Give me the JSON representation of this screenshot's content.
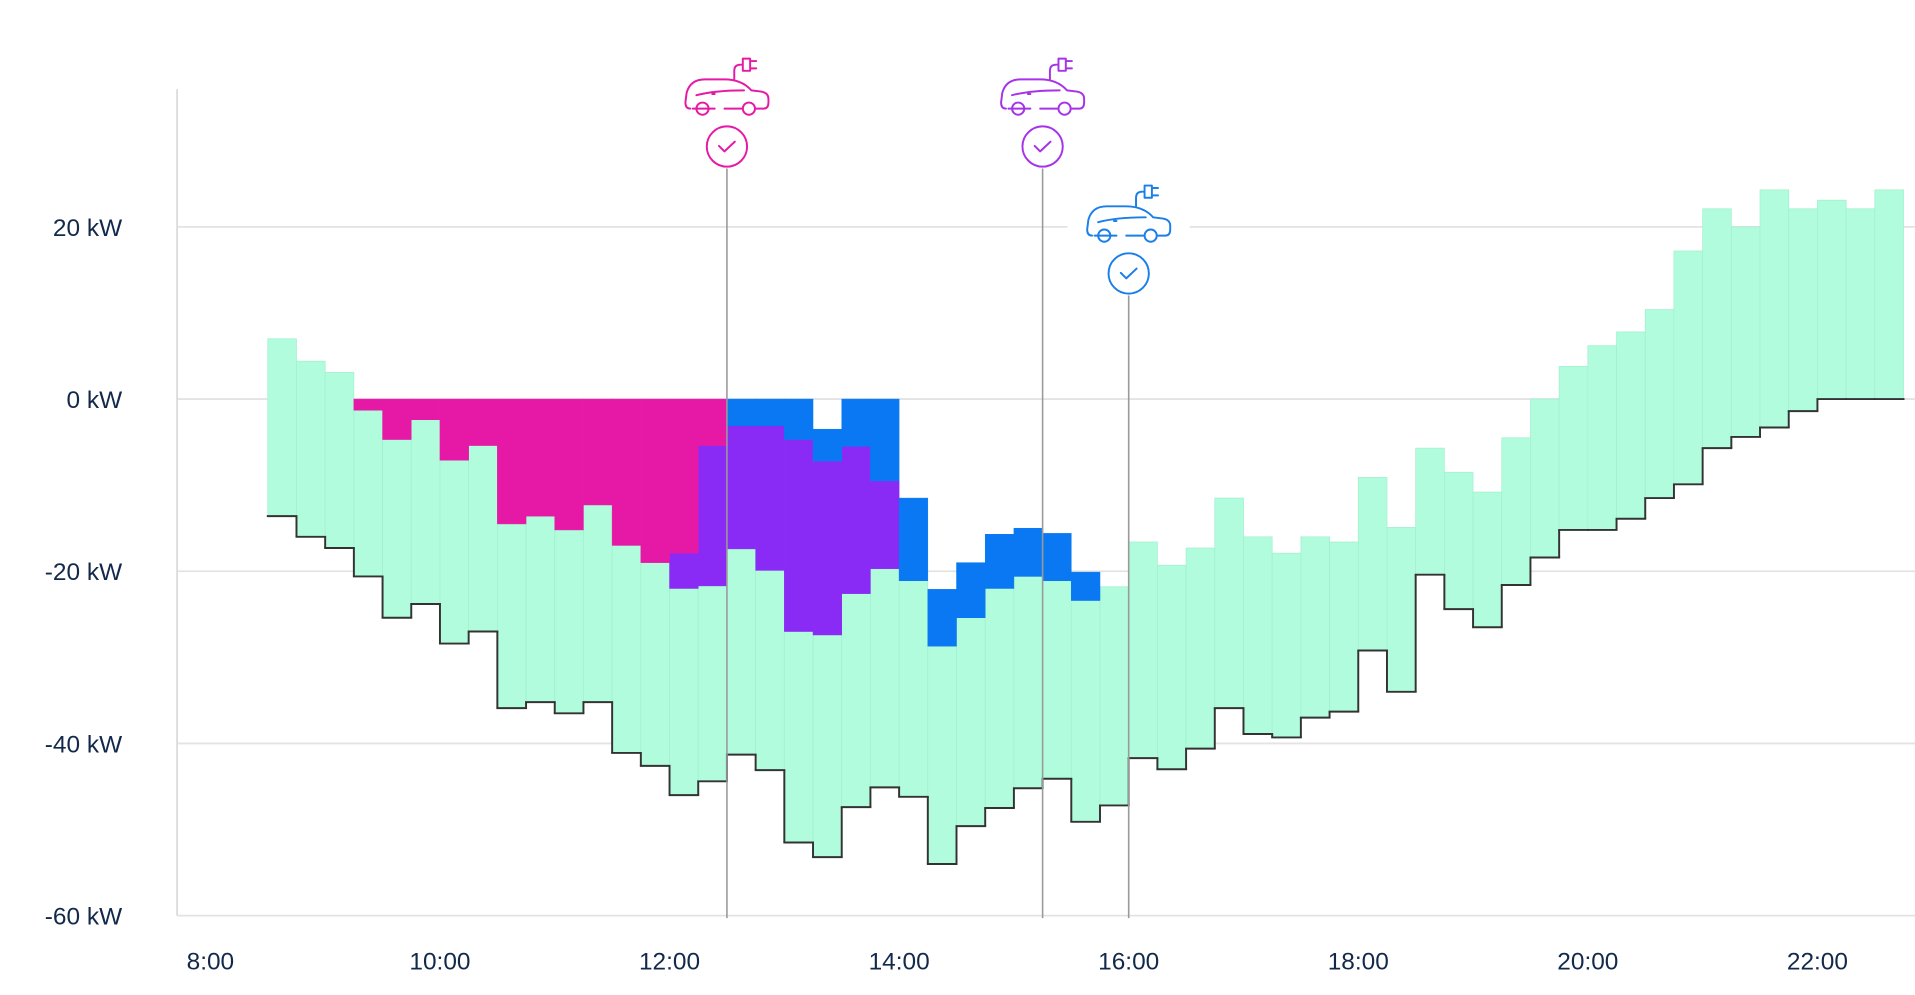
{
  "chart_data": {
    "type": "step-area",
    "x": [
      8.5,
      8.75,
      9,
      9.25,
      9.5,
      9.75,
      10,
      10.25,
      10.5,
      10.75,
      11,
      11.25,
      11.5,
      11.75,
      12,
      12.25,
      12.5,
      12.75,
      13,
      13.25,
      13.5,
      13.75,
      14,
      14.25,
      14.5,
      14.75,
      15,
      15.25,
      15.5,
      15.75,
      16,
      16.25,
      16.5,
      16.75,
      17,
      17.25,
      17.5,
      17.75,
      18,
      18.25,
      18.5,
      18.75,
      19,
      19.25,
      19.5,
      19.75,
      20,
      20.25,
      20.5,
      20.75,
      21,
      21.25,
      21.5,
      21.75,
      22,
      22.25,
      22.5
    ],
    "xlim": [
      7.71,
      22.85
    ],
    "xticks": [
      {
        "value": 8,
        "label": "8:00"
      },
      {
        "value": 10,
        "label": "10:00"
      },
      {
        "value": 12,
        "label": "12:00"
      },
      {
        "value": 14,
        "label": "14:00"
      },
      {
        "value": 16,
        "label": "16:00"
      },
      {
        "value": 18,
        "label": "18:00"
      },
      {
        "value": 20,
        "label": "20:00"
      },
      {
        "value": 22,
        "label": "22:00"
      }
    ],
    "ylim": [
      -60,
      36
    ],
    "yticks": [
      {
        "value": -60,
        "label": "-60 kW"
      },
      {
        "value": -40,
        "label": "-40 kW"
      },
      {
        "value": -20,
        "label": "-20 kW"
      },
      {
        "value": 0,
        "label": "0 kW"
      },
      {
        "value": 20,
        "label": "20 kW"
      }
    ],
    "grid": true,
    "area": {
      "color": "#b0fcdc",
      "values": [
        7,
        4.4,
        3.1,
        -1.3,
        -4.7,
        -2.4,
        -7.1,
        -5.4,
        -14.5,
        -13.6,
        -15.2,
        -12.3,
        -17,
        -19,
        -22,
        -21.7,
        -17.4,
        -19.9,
        -27,
        -27.4,
        -22.6,
        -19.7,
        -21.1,
        -28.7,
        -25.4,
        -22,
        -20.6,
        -21.1,
        -23.4,
        -21.8,
        -16.6,
        -19.3,
        -17.3,
        -11.5,
        -16,
        -17.9,
        -16,
        -16.6,
        -9.1,
        -14.9,
        -5.7,
        -8.5,
        -10.8,
        -4.5,
        0,
        3.8,
        6.2,
        7.8,
        10.4,
        17.2,
        22.1,
        20,
        24.3,
        22.1,
        23.1,
        22.1,
        24.3
      ]
    },
    "line": {
      "color": "#333333",
      "values": [
        -13.6,
        -16,
        -17.3,
        -20.6,
        -25.4,
        -23.8,
        -28.4,
        -27,
        -35.9,
        -35.2,
        -36.5,
        -35.2,
        -41.1,
        -42.6,
        -46,
        -44.4,
        -41.3,
        -43.1,
        -51.5,
        -53.2,
        -47.4,
        -45.1,
        -46.2,
        -54,
        -49.6,
        -47.5,
        -45.2,
        -44.1,
        -49.1,
        -47.2,
        -41.7,
        -43,
        -40.6,
        -35.9,
        -38.9,
        -39.3,
        -37,
        -36.3,
        -29.2,
        -34,
        -20.4,
        -24.4,
        -26.5,
        -21.6,
        -18.4,
        -15.2,
        -15.2,
        -13.9,
        -11.5,
        -9.9,
        -5.7,
        -4.4,
        -3.3,
        -1.4,
        0,
        0,
        0
      ]
    },
    "series": [
      {
        "color": "#8a2bf5",
        "values": [
          null,
          null,
          null,
          null,
          null,
          null,
          null,
          null,
          null,
          null,
          null,
          null,
          null,
          null,
          4.1,
          16.3,
          14.3,
          16.8,
          22.3,
          20.2,
          17.1,
          10.2,
          null,
          null,
          null,
          null,
          null,
          null,
          null,
          null,
          null,
          null,
          null,
          null,
          null,
          null,
          null,
          null,
          null,
          null,
          null,
          null,
          null,
          null,
          null,
          null,
          null,
          null,
          null,
          null,
          null,
          null,
          null,
          null,
          null,
          null,
          null
        ]
      },
      {
        "color": "#e619a6",
        "values": [
          null,
          null,
          null,
          1.3,
          4.7,
          2.4,
          7.1,
          5.4,
          14.5,
          13.6,
          15.2,
          12.3,
          17,
          19,
          17.9,
          5.4,
          null,
          null,
          null,
          null,
          null,
          null,
          null,
          null,
          null,
          null,
          null,
          null,
          null,
          null,
          null,
          null,
          null,
          null,
          null,
          null,
          null,
          null,
          null,
          null,
          null,
          null,
          null,
          null,
          null,
          null,
          null,
          null,
          null,
          null,
          null,
          null,
          null,
          null,
          null,
          null,
          null
        ]
      },
      {
        "color": "#0a78f2",
        "values": [
          null,
          null,
          null,
          null,
          null,
          null,
          null,
          null,
          null,
          null,
          null,
          null,
          null,
          null,
          null,
          null,
          3.1,
          3.1,
          4.7,
          3.7,
          5.5,
          9.5,
          9.6,
          6.6,
          6.4,
          6.3,
          5.6,
          5.5,
          3.3,
          null,
          null,
          null,
          null,
          null,
          null,
          null,
          null,
          null,
          null,
          null,
          null,
          null,
          null,
          null,
          null,
          null,
          null,
          null,
          null,
          null,
          null,
          null,
          null,
          null,
          null,
          null,
          null
        ]
      }
    ],
    "markers": [
      {
        "x": 12.5,
        "color": "#e619a6"
      },
      {
        "x": 15.25,
        "color": "#a633e8"
      },
      {
        "x": 16,
        "color": "#1a7fe8"
      }
    ]
  }
}
